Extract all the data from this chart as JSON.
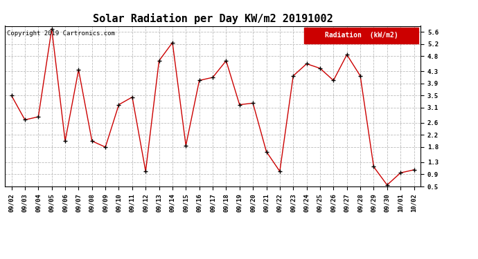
{
  "title": "Solar Radiation per Day KW/m2 20191002",
  "copyright": "Copyright 2019 Cartronics.com",
  "legend_label": "Radiation  (kW/m2)",
  "dates": [
    "09/02",
    "09/03",
    "09/04",
    "09/05",
    "09/06",
    "09/07",
    "09/08",
    "09/09",
    "09/10",
    "09/11",
    "09/12",
    "09/13",
    "09/14",
    "09/15",
    "09/16",
    "09/17",
    "09/18",
    "09/19",
    "09/20",
    "09/21",
    "09/22",
    "09/23",
    "09/24",
    "09/25",
    "09/26",
    "09/27",
    "09/28",
    "09/29",
    "09/30",
    "10/01",
    "10/02"
  ],
  "values": [
    3.5,
    2.7,
    2.8,
    5.7,
    2.0,
    4.35,
    2.0,
    1.8,
    3.2,
    3.45,
    1.0,
    4.65,
    5.25,
    1.85,
    4.0,
    4.1,
    4.65,
    3.2,
    3.25,
    1.65,
    1.0,
    4.15,
    4.55,
    4.4,
    4.0,
    4.85,
    4.15,
    1.15,
    0.55,
    0.95,
    1.05
  ],
  "line_color": "#cc0000",
  "marker_color": "#000000",
  "background_color": "#ffffff",
  "plot_bg_color": "#ffffff",
  "grid_color": "#bbbbbb",
  "ylim": [
    0.5,
    5.8
  ],
  "yticks": [
    0.5,
    0.9,
    1.3,
    1.8,
    2.2,
    2.6,
    3.1,
    3.5,
    3.9,
    4.3,
    4.8,
    5.2,
    5.6
  ],
  "title_fontsize": 11,
  "copyright_fontsize": 6.5,
  "tick_fontsize": 6.5,
  "legend_bg": "#cc0000",
  "legend_text_color": "#ffffff",
  "legend_fontsize": 7
}
